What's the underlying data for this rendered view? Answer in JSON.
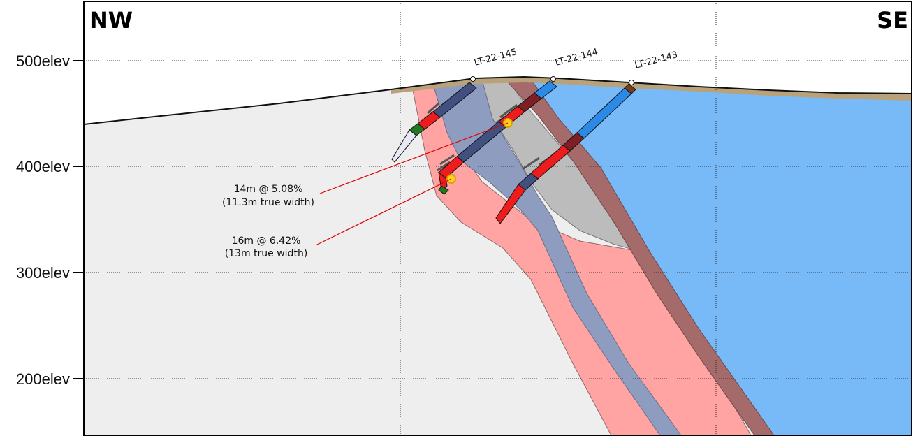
{
  "direction": {
    "left": "NW",
    "right": "SE"
  },
  "elevation_labels": [
    "500elev",
    "400elev",
    "300elev",
    "200elev"
  ],
  "drillholes": [
    {
      "id": "LT-22-145"
    },
    {
      "id": "LT-22-144"
    },
    {
      "id": "LT-22-143"
    }
  ],
  "intercepts": [
    {
      "line1": "14m @ 5.08%",
      "line2": "(11.3m true width)"
    },
    {
      "line1": "16m @ 6.42%",
      "line2": "(13m true width)"
    }
  ],
  "colors": {
    "host_rock": "#eeeeee",
    "pegmatite": "#ffa3a3",
    "dyke_blue_grey": "#8e9cc0",
    "grey_unit": "#bcbcbc",
    "maroon_unit": "#a56a6a",
    "blue_unit": "#78baf8",
    "overburden": "#b9a27a",
    "core_red": "#ee1c1c",
    "core_navy": "#41507f",
    "core_blue": "#2b8ae6",
    "core_darkred": "#7e1f26",
    "core_green": "#1f7a1f",
    "core_brown": "#7a3d12",
    "callout_line": "#dd0000",
    "highlight": "#ffd21f"
  }
}
